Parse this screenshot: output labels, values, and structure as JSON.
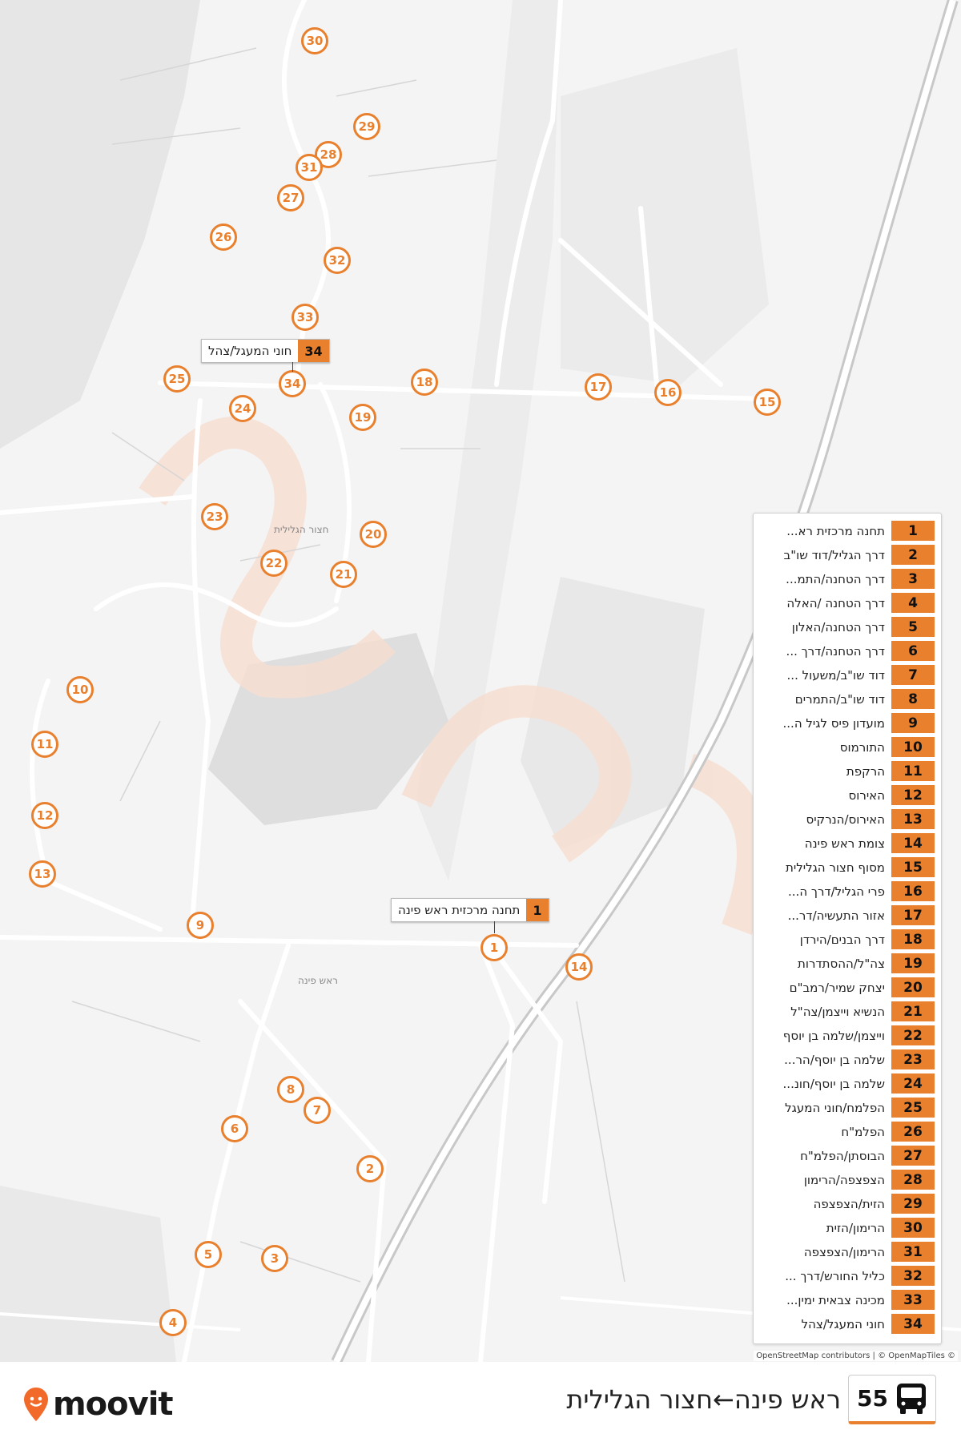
{
  "route": {
    "number": "55",
    "title": "ראש פינה←חצור הגלילית",
    "bus_icon": "bus-icon"
  },
  "brand": {
    "name": "moovit",
    "accent": "#e8802e",
    "logo_icon": "location-pin-icon"
  },
  "attribution": "OpenStreetMap contributors | © OpenMapTiles ©",
  "places": {
    "hatzor": "חצור הגלילית",
    "rosh_pina": "ראש פינה"
  },
  "callouts": {
    "start": {
      "num": "1",
      "name": "תחנה מרכזית ראש פינה"
    },
    "end": {
      "num": "34",
      "name": "חוני המעגל/צהל"
    }
  },
  "stops": [
    {
      "num": "1",
      "name": "תחנה מרכזית רא..."
    },
    {
      "num": "2",
      "name": "דרך הגליל/דוד שו\"ב"
    },
    {
      "num": "3",
      "name": "דרך הטחנה/התמ..."
    },
    {
      "num": "4",
      "name": "דרך הטחנה /האלה"
    },
    {
      "num": "5",
      "name": "דרך הטחנה/האלון"
    },
    {
      "num": "6",
      "name": "דרך הטחנה/דרך ..."
    },
    {
      "num": "7",
      "name": "דוד שו\"ב/משעול ..."
    },
    {
      "num": "8",
      "name": "דוד שו\"ב/התמרים"
    },
    {
      "num": "9",
      "name": "מועדון פיס לגיל ה..."
    },
    {
      "num": "10",
      "name": "התורמוס"
    },
    {
      "num": "11",
      "name": "הרקפת"
    },
    {
      "num": "12",
      "name": "האירוס"
    },
    {
      "num": "13",
      "name": "האירוס/הנרקיס"
    },
    {
      "num": "14",
      "name": "צומת ראש פינה"
    },
    {
      "num": "15",
      "name": "מסוף חצור הגלילית"
    },
    {
      "num": "16",
      "name": "פרי הגליל/דרך ה..."
    },
    {
      "num": "17",
      "name": "אזור התעשיה/דר..."
    },
    {
      "num": "18",
      "name": "דרך הבנים/הירדן"
    },
    {
      "num": "19",
      "name": "צה\"ל/ההסתדרות"
    },
    {
      "num": "20",
      "name": "יצחק שמיר/רמב\"ם"
    },
    {
      "num": "21",
      "name": "הנשיא וייצמן/צה\"ל"
    },
    {
      "num": "22",
      "name": "וייצמן/שלמה בן יוסף"
    },
    {
      "num": "23",
      "name": "שלמה בן יוסף/הר..."
    },
    {
      "num": "24",
      "name": "שלמה בן יוסף/חונ..."
    },
    {
      "num": "25",
      "name": "הפלמח/חוני המעגל"
    },
    {
      "num": "26",
      "name": "הפלמ\"ח"
    },
    {
      "num": "27",
      "name": "הבוסתן/הפלמ\"ח"
    },
    {
      "num": "28",
      "name": "הצפצפה/הרימון"
    },
    {
      "num": "29",
      "name": "הזית/הצפצפה"
    },
    {
      "num": "30",
      "name": "הרימון/הזית"
    },
    {
      "num": "31",
      "name": "הרימון/הצפצפה"
    },
    {
      "num": "32",
      "name": "כליל החורש/דרך ..."
    },
    {
      "num": "33",
      "name": "מכינה צבאית ימין..."
    },
    {
      "num": "34",
      "name": "חוני המעגל/צהל"
    }
  ]
}
